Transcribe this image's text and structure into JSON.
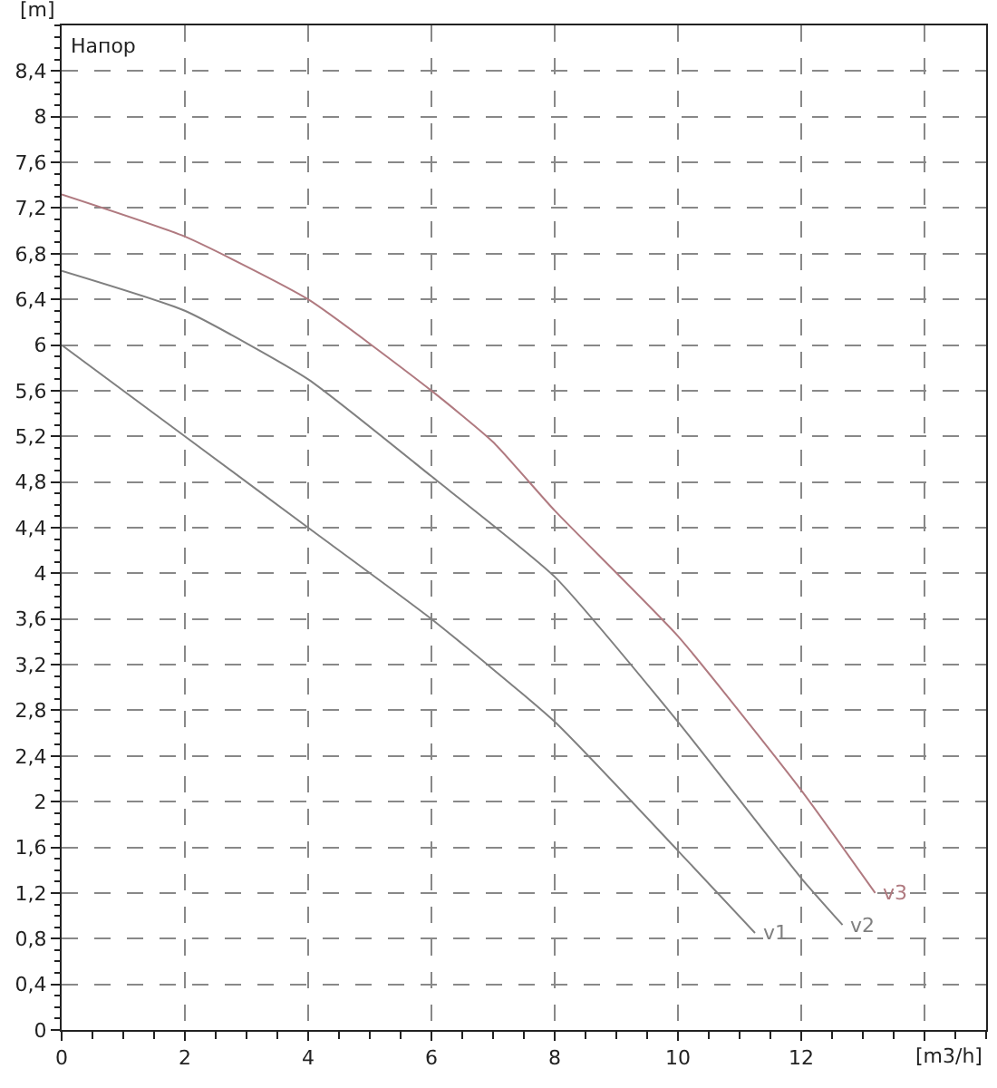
{
  "chart_data": {
    "type": "line",
    "title": "Напор",
    "xlabel": "[m3/h]",
    "ylabel": "[m]",
    "xlim": [
      0,
      15
    ],
    "xticks": [
      0,
      2,
      4,
      6,
      8,
      10,
      12,
      {
        "value": 14,
        "label": null
      }
    ],
    "ylim": [
      0,
      8.8
    ],
    "yticks": [
      {
        "value": 0,
        "label": "0"
      },
      {
        "value": 0.4,
        "label": "0,4"
      },
      {
        "value": 0.8,
        "label": "0,8"
      },
      {
        "value": 1.2,
        "label": "1,2"
      },
      {
        "value": 1.6,
        "label": "1,6"
      },
      {
        "value": 2,
        "label": "2"
      },
      {
        "value": 2.4,
        "label": "2,4"
      },
      {
        "value": 2.8,
        "label": "2,8"
      },
      {
        "value": 3.2,
        "label": "3,2"
      },
      {
        "value": 3.6,
        "label": "3,6"
      },
      {
        "value": 4,
        "label": "4"
      },
      {
        "value": 4.4,
        "label": "4,4"
      },
      {
        "value": 4.8,
        "label": "4,8"
      },
      {
        "value": 5.2,
        "label": "5,2"
      },
      {
        "value": 5.6,
        "label": "5,6"
      },
      {
        "value": 6,
        "label": "6"
      },
      {
        "value": 6.4,
        "label": "6,4"
      },
      {
        "value": 6.8,
        "label": "6,8"
      },
      {
        "value": 7.2,
        "label": "7,2"
      },
      {
        "value": 7.6,
        "label": "7,6"
      },
      {
        "value": 8,
        "label": "8"
      },
      {
        "value": 8.4,
        "label": "8,4"
      }
    ],
    "grid": true,
    "line_style": "solid",
    "marker": "none",
    "series": [
      {
        "name": "v1",
        "color": "#808080",
        "x": [
          0,
          2,
          4,
          6,
          8,
          10,
          11.25
        ],
        "values": [
          6.0,
          5.2,
          4.4,
          3.6,
          2.7,
          1.57,
          0.85
        ]
      },
      {
        "name": "v2",
        "color": "#808080",
        "x": [
          0,
          2,
          4,
          6,
          8,
          10,
          12,
          12.67
        ],
        "values": [
          6.65,
          6.3,
          5.7,
          4.85,
          3.97,
          2.7,
          1.33,
          0.92
        ]
      },
      {
        "name": "v3",
        "color": "#b07a80",
        "x": [
          0,
          2,
          4,
          6,
          7,
          8,
          10,
          12,
          13.2
        ],
        "values": [
          7.32,
          6.95,
          6.4,
          5.6,
          5.15,
          4.55,
          3.45,
          2.1,
          1.2
        ]
      }
    ]
  }
}
